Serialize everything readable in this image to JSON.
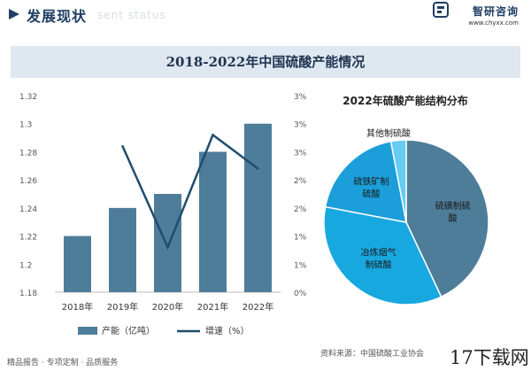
{
  "header": {
    "title": "发展现状",
    "subtitle": "sent status",
    "brand_name": "智研咨询",
    "brand_url": "www.chyxx.com"
  },
  "title_bar": "2018-2022年中国硫酸产能情况",
  "chart_data": [
    {
      "type": "bar",
      "categories": [
        "2018年",
        "2019年",
        "2020年",
        "2021年",
        "2022年"
      ],
      "series": [
        {
          "name": "产能（亿吨）",
          "type": "bar",
          "axis": "left",
          "values": [
            1.22,
            1.24,
            1.25,
            1.28,
            1.3
          ],
          "color": "#4e7d99"
        },
        {
          "name": "增速（%）",
          "type": "line",
          "axis": "right",
          "values": [
            null,
            2.6,
            0.8,
            2.8,
            2.2
          ],
          "color": "#1f4d6e"
        }
      ],
      "left_ticks": [
        "1.18",
        "1.2",
        "1.22",
        "1.24",
        "1.26",
        "1.28",
        "1.3",
        "1.32"
      ],
      "right_ticks": [
        "0%",
        "1%",
        "1%",
        "2%",
        "2%",
        "3%",
        "3%",
        "3%"
      ],
      "ylim_left": [
        1.18,
        1.32
      ],
      "ylim_right": [
        0,
        3.5
      ],
      "grid": false,
      "legend": "bottom"
    },
    {
      "type": "pie",
      "title": "2022年硫酸产能结构分布",
      "labels": [
        "硫磺制硫酸",
        "冶炼烟气制硫酸",
        "硫铁矿制硫酸",
        "其他制硫酸"
      ],
      "label_lines": [
        [
          "硫磺制硫",
          "酸"
        ],
        [
          "冶炼烟气",
          "制硫酸"
        ],
        [
          "硫铁矿制",
          "硫酸"
        ],
        [
          "其他制硫酸"
        ]
      ],
      "values": [
        43,
        35,
        19,
        3
      ],
      "colors": [
        "#4e7d99",
        "#18a8e0",
        "#1b9ed9",
        "#66ccf2"
      ]
    }
  ],
  "footer": {
    "left_text": "精品报告 · 专项定制 · 品质服务",
    "source": "资料来源：中国硫酸工业协会",
    "watermark": "17下载网"
  }
}
